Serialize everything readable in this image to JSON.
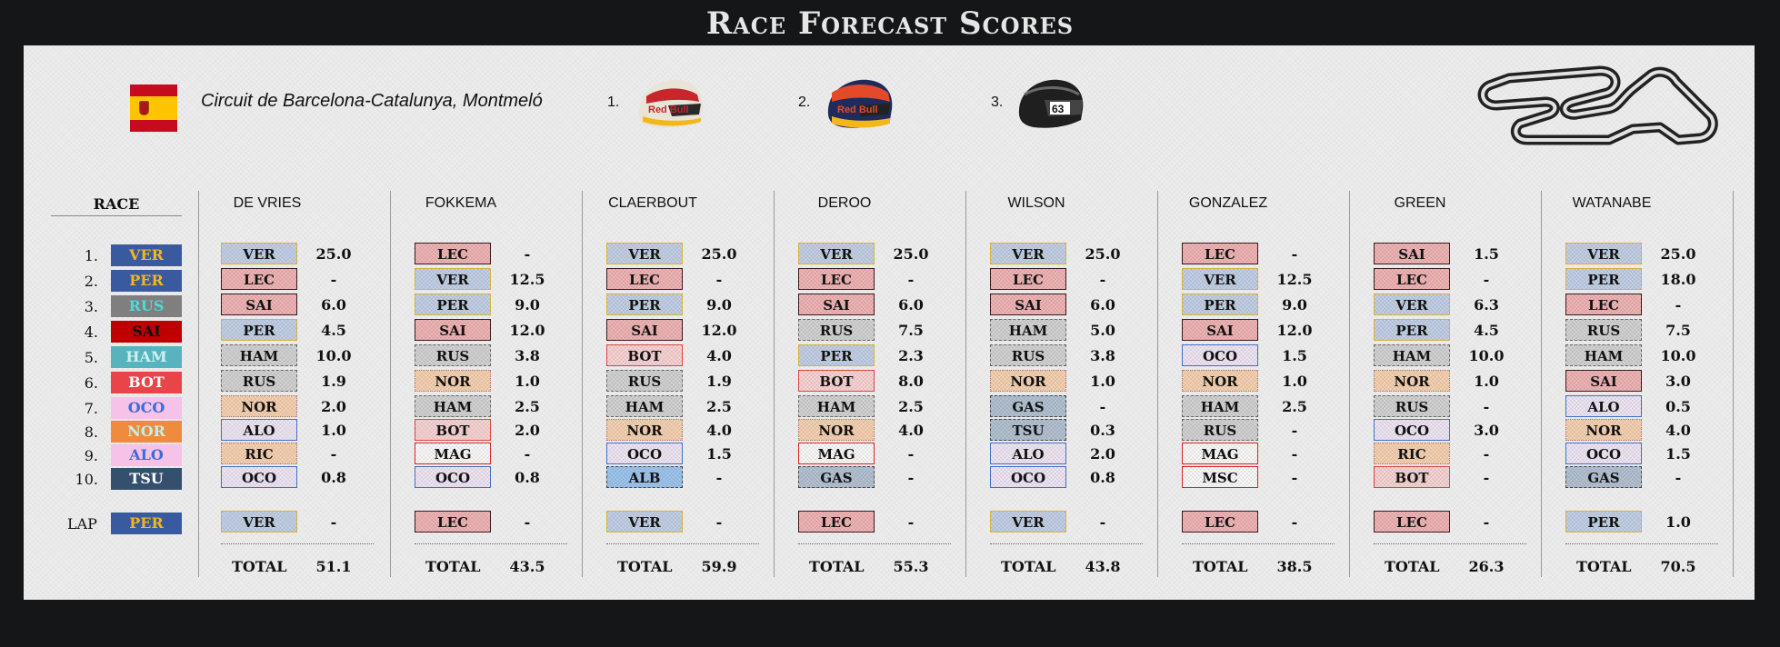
{
  "title": "Race Forecast Scores",
  "circuit": "Circuit de Barcelona-Catalunya, Montmeló",
  "flag_icon": "spain-flag-icon",
  "podium": [
    {
      "pos": "1.",
      "helmet": "red-bull-helmet-icon",
      "color": "#1e2b5c"
    },
    {
      "pos": "2.",
      "helmet": "red-bull-perez-helmet-icon",
      "color": "#d23a2a"
    },
    {
      "pos": "3.",
      "helmet": "mercedes-black-helmet-icon",
      "color": "#1f1f1f"
    }
  ],
  "race": {
    "header": "RACE",
    "positions": [
      "1.",
      "2.",
      "3.",
      "4.",
      "5.",
      "6.",
      "7.",
      "8.",
      "9.",
      "10."
    ],
    "results": [
      {
        "code": "VER",
        "bg": "#3a5aa0",
        "fg": "#f2b81b"
      },
      {
        "code": "PER",
        "bg": "#3a5aa0",
        "fg": "#f2b81b"
      },
      {
        "code": "RUS",
        "bg": "#7f7f7f",
        "fg": "#4fd9d9"
      },
      {
        "code": "SAI",
        "bg": "#c00000",
        "fg": "#111111"
      },
      {
        "code": "HAM",
        "bg": "#56b4bf",
        "fg": "#d0f0f0"
      },
      {
        "code": "BOT",
        "bg": "#e8444a",
        "fg": "#ffffff"
      },
      {
        "code": "OCO",
        "bg": "#f7c2e8",
        "fg": "#3b6bd8"
      },
      {
        "code": "NOR",
        "bg": "#f08a3c",
        "fg": "#bff0f0"
      },
      {
        "code": "ALO",
        "bg": "#f7c2e8",
        "fg": "#3b6bd8"
      },
      {
        "code": "TSU",
        "bg": "#35506e",
        "fg": "#ffffff"
      }
    ],
    "lap_label": "LAP",
    "lap": {
      "code": "PER",
      "bg": "#3a5aa0",
      "fg": "#f2b81b"
    }
  },
  "players": [
    {
      "name": "DE VRIES",
      "picks": [
        [
          "VER",
          "good",
          "25.0"
        ],
        [
          "LEC",
          "bad",
          "-"
        ],
        [
          "SAI",
          "bad",
          "6.0"
        ],
        [
          "PER",
          "good",
          "4.5"
        ],
        [
          "HAM",
          "gray",
          "10.0"
        ],
        [
          "RUS",
          "gray",
          "1.9"
        ],
        [
          "NOR",
          "orange",
          "2.0"
        ],
        [
          "ALO",
          "lav",
          "1.0"
        ],
        [
          "RIC",
          "orange",
          "-"
        ],
        [
          "OCO",
          "lav",
          "0.8"
        ]
      ],
      "lap": [
        "VER",
        "good",
        "-"
      ],
      "total_label": "TOTAL",
      "total": "51.1"
    },
    {
      "name": "FOKKEMA",
      "picks": [
        [
          "LEC",
          "bad",
          "-"
        ],
        [
          "VER",
          "good",
          "12.5"
        ],
        [
          "PER",
          "good",
          "9.0"
        ],
        [
          "SAI",
          "bad",
          "12.0"
        ],
        [
          "RUS",
          "gray",
          "3.8"
        ],
        [
          "NOR",
          "orange",
          "1.0"
        ],
        [
          "HAM",
          "gray",
          "2.5"
        ],
        [
          "BOT",
          "pink",
          "2.0"
        ],
        [
          "MAG",
          "white",
          "-"
        ],
        [
          "OCO",
          "lav",
          "0.8"
        ]
      ],
      "lap": [
        "LEC",
        "bad",
        "-"
      ],
      "total_label": "TOTAL",
      "total": "43.5"
    },
    {
      "name": "CLAERBOUT",
      "picks": [
        [
          "VER",
          "good",
          "25.0"
        ],
        [
          "LEC",
          "bad",
          "-"
        ],
        [
          "PER",
          "good",
          "9.0"
        ],
        [
          "SAI",
          "bad",
          "12.0"
        ],
        [
          "BOT",
          "pink",
          "4.0"
        ],
        [
          "RUS",
          "gray",
          "1.9"
        ],
        [
          "HAM",
          "gray",
          "2.5"
        ],
        [
          "NOR",
          "orange",
          "4.0"
        ],
        [
          "OCO",
          "lav",
          "1.5"
        ],
        [
          "ALB",
          "lightblue",
          "-"
        ]
      ],
      "lap": [
        "VER",
        "good",
        "-"
      ],
      "total_label": "TOTAL",
      "total": "59.9"
    },
    {
      "name": "DEROO",
      "picks": [
        [
          "VER",
          "good",
          "25.0"
        ],
        [
          "LEC",
          "bad",
          "-"
        ],
        [
          "SAI",
          "bad",
          "6.0"
        ],
        [
          "RUS",
          "gray",
          "7.5"
        ],
        [
          "PER",
          "good",
          "2.3"
        ],
        [
          "BOT",
          "pink",
          "8.0"
        ],
        [
          "HAM",
          "gray",
          "2.5"
        ],
        [
          "NOR",
          "orange",
          "4.0"
        ],
        [
          "MAG",
          "white",
          "-"
        ],
        [
          "GAS",
          "slate",
          "-"
        ]
      ],
      "lap": [
        "LEC",
        "bad",
        "-"
      ],
      "total_label": "TOTAL",
      "total": "55.3"
    },
    {
      "name": "WILSON",
      "picks": [
        [
          "VER",
          "good",
          "25.0"
        ],
        [
          "LEC",
          "bad",
          "-"
        ],
        [
          "SAI",
          "bad",
          "6.0"
        ],
        [
          "HAM",
          "gray",
          "5.0"
        ],
        [
          "RUS",
          "gray",
          "3.8"
        ],
        [
          "NOR",
          "orange",
          "1.0"
        ],
        [
          "GAS",
          "slate",
          "-"
        ],
        [
          "TSU",
          "slate",
          "0.3"
        ],
        [
          "ALO",
          "lav",
          "2.0"
        ],
        [
          "OCO",
          "lav",
          "0.8"
        ]
      ],
      "lap": [
        "VER",
        "good",
        "-"
      ],
      "total_label": "TOTAL",
      "total": "43.8"
    },
    {
      "name": "GONZALEZ",
      "picks": [
        [
          "LEC",
          "bad",
          "-"
        ],
        [
          "VER",
          "good",
          "12.5"
        ],
        [
          "PER",
          "good",
          "9.0"
        ],
        [
          "SAI",
          "bad",
          "12.0"
        ],
        [
          "OCO",
          "lav",
          "1.5"
        ],
        [
          "NOR",
          "orange",
          "1.0"
        ],
        [
          "HAM",
          "gray",
          "2.5"
        ],
        [
          "RUS",
          "gray",
          "-"
        ],
        [
          "MAG",
          "white",
          "-"
        ],
        [
          "MSC",
          "white",
          "-"
        ]
      ],
      "lap": [
        "LEC",
        "bad",
        "-"
      ],
      "total_label": "TOTAL",
      "total": "38.5"
    },
    {
      "name": "GREEN",
      "picks": [
        [
          "SAI",
          "bad",
          "1.5"
        ],
        [
          "LEC",
          "bad",
          "-"
        ],
        [
          "VER",
          "good",
          "6.3"
        ],
        [
          "PER",
          "good",
          "4.5"
        ],
        [
          "HAM",
          "gray",
          "10.0"
        ],
        [
          "NOR",
          "orange",
          "1.0"
        ],
        [
          "RUS",
          "gray",
          "-"
        ],
        [
          "OCO",
          "lav",
          "3.0"
        ],
        [
          "RIC",
          "orange",
          "-"
        ],
        [
          "BOT",
          "pink",
          "-"
        ]
      ],
      "lap": [
        "LEC",
        "bad",
        "-"
      ],
      "total_label": "TOTAL",
      "total": "26.3"
    },
    {
      "name": "WATANABE",
      "picks": [
        [
          "VER",
          "good",
          "25.0"
        ],
        [
          "PER",
          "good",
          "18.0"
        ],
        [
          "LEC",
          "bad",
          "-"
        ],
        [
          "RUS",
          "gray",
          "7.5"
        ],
        [
          "HAM",
          "gray",
          "10.0"
        ],
        [
          "SAI",
          "bad",
          "3.0"
        ],
        [
          "ALO",
          "lav",
          "0.5"
        ],
        [
          "NOR",
          "orange",
          "4.0"
        ],
        [
          "OCO",
          "lav",
          "1.5"
        ],
        [
          "GAS",
          "slate",
          "-"
        ]
      ],
      "lap": [
        "PER",
        "good",
        "1.0"
      ],
      "total_label": "TOTAL",
      "total": "70.5"
    }
  ]
}
